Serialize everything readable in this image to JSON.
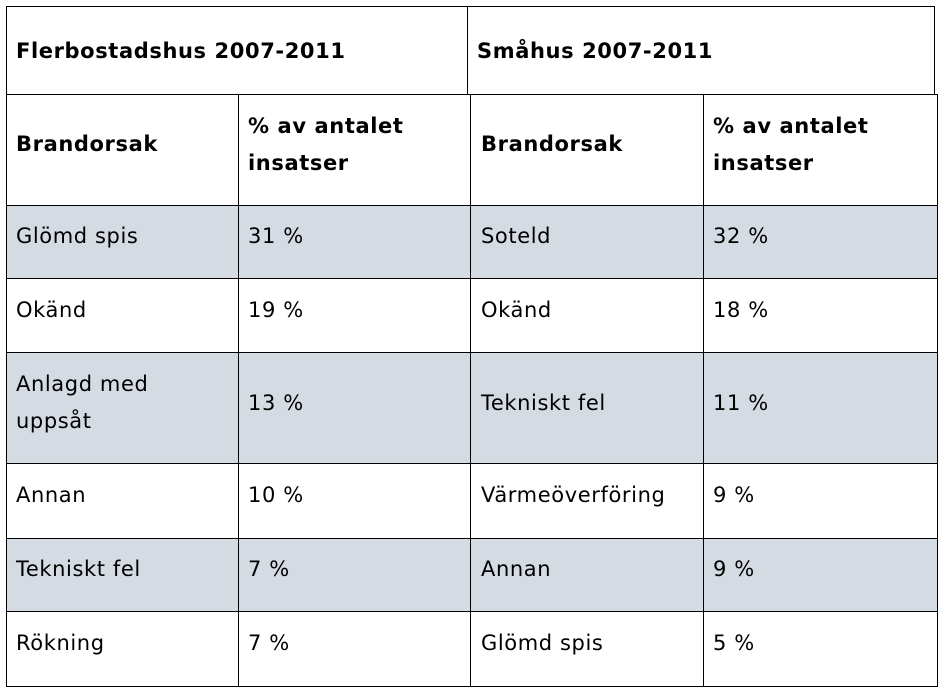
{
  "tables": [
    {
      "title": "Flerbostadshus 2007-2011",
      "col_header_cause": "Brandorsak",
      "col_header_pct": "% av antalet insatser",
      "rows": [
        {
          "cause": "Glömd spis",
          "pct": "31 %"
        },
        {
          "cause": "Okänd",
          "pct": "19 %"
        },
        {
          "cause": "Anlagd med uppsåt",
          "pct": "13 %"
        },
        {
          "cause": "Annan",
          "pct": "10 %"
        },
        {
          "cause": "Tekniskt fel",
          "pct": "7 %"
        },
        {
          "cause": "Rökning",
          "pct": "7 %"
        }
      ]
    },
    {
      "title": "Småhus 2007-2011",
      "col_header_cause": "Brandorsak",
      "col_header_pct": "% av antalet insatser",
      "rows": [
        {
          "cause": "Soteld",
          "pct": "32 %"
        },
        {
          "cause": "Okänd",
          "pct": "18 %"
        },
        {
          "cause": "Tekniskt fel",
          "pct": "11 %"
        },
        {
          "cause": "Värmeöverföring",
          "pct": "9 %"
        },
        {
          "cause": "Annan",
          "pct": "9 %"
        },
        {
          "cause": "Glömd spis",
          "pct": "5 %"
        }
      ]
    }
  ],
  "colors": {
    "shaded_row": "#d5dbe2",
    "grid": "#000000"
  }
}
